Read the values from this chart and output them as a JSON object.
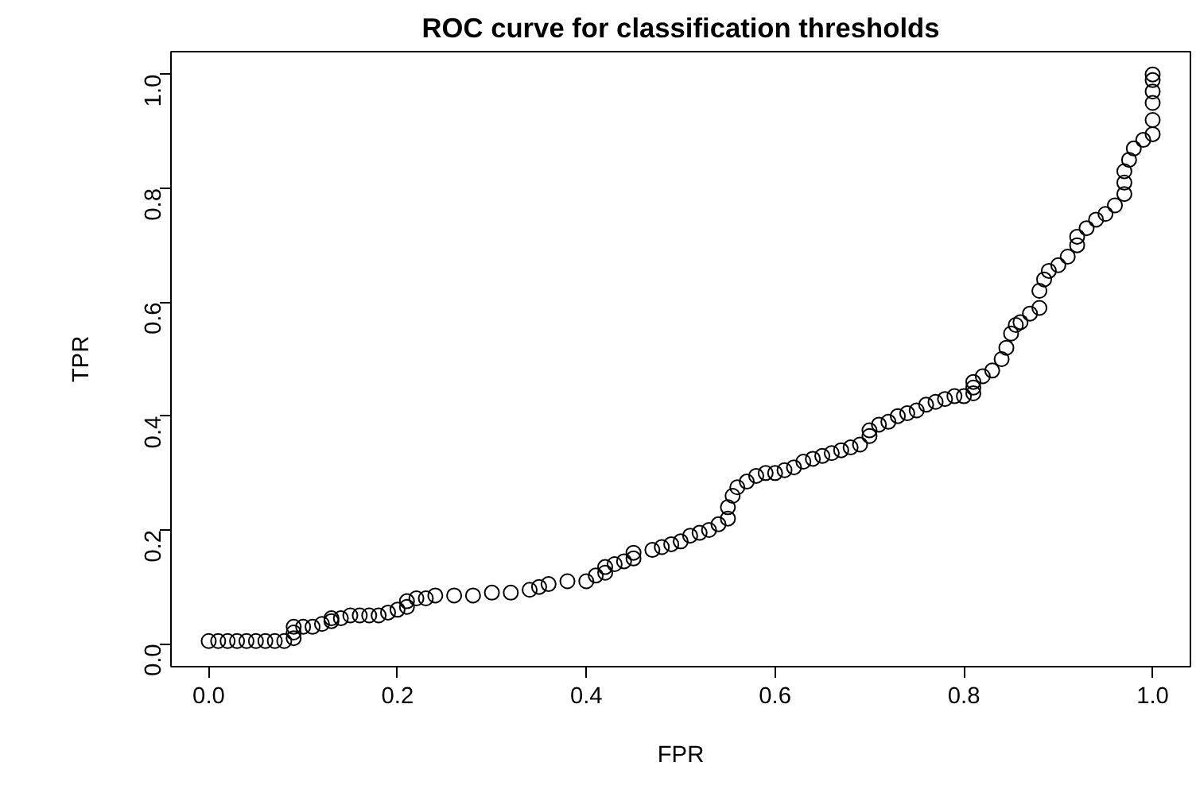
{
  "chart_data": {
    "type": "scatter",
    "title": "ROC curve for classification thresholds",
    "xlabel": "FPR",
    "ylabel": "TPR",
    "xlim": [
      -0.04,
      1.04
    ],
    "ylim": [
      -0.04,
      1.04
    ],
    "xticks": [
      {
        "value": 0,
        "label": "0.0"
      },
      0.2,
      0.4,
      0.6,
      0.8,
      {
        "value": 1,
        "label": "1.0"
      }
    ],
    "yticks": [
      {
        "value": 0,
        "label": "0.0"
      },
      0.2,
      0.4,
      0.6,
      0.8,
      {
        "value": 1,
        "label": "1.0"
      }
    ],
    "grid": false,
    "marker": "circle",
    "series": [
      {
        "color": "#000000",
        "x": [
          0.0,
          0.01,
          0.02,
          0.03,
          0.04,
          0.05,
          0.06,
          0.07,
          0.08,
          0.09,
          0.09,
          0.09,
          0.1,
          0.11,
          0.12,
          0.13,
          0.13,
          0.14,
          0.15,
          0.16,
          0.17,
          0.18,
          0.19,
          0.2,
          0.21,
          0.21,
          0.22,
          0.23,
          0.24,
          0.26,
          0.28,
          0.3,
          0.32,
          0.34,
          0.35,
          0.36,
          0.38,
          0.4,
          0.41,
          0.42,
          0.42,
          0.43,
          0.44,
          0.45,
          0.45,
          0.47,
          0.48,
          0.49,
          0.5,
          0.51,
          0.52,
          0.53,
          0.54,
          0.55,
          0.55,
          0.555,
          0.56,
          0.57,
          0.58,
          0.59,
          0.6,
          0.61,
          0.62,
          0.63,
          0.64,
          0.65,
          0.66,
          0.67,
          0.68,
          0.69,
          0.7,
          0.7,
          0.71,
          0.72,
          0.73,
          0.74,
          0.75,
          0.76,
          0.77,
          0.78,
          0.79,
          0.8,
          0.81,
          0.81,
          0.81,
          0.82,
          0.83,
          0.84,
          0.845,
          0.85,
          0.855,
          0.86,
          0.87,
          0.88,
          0.88,
          0.885,
          0.89,
          0.9,
          0.91,
          0.92,
          0.92,
          0.93,
          0.94,
          0.95,
          0.96,
          0.97,
          0.97,
          0.97,
          0.975,
          0.98,
          0.99,
          1.0,
          1.0,
          1.0,
          1.0,
          1.0,
          1.0
        ],
        "values": [
          0.005,
          0.005,
          0.005,
          0.005,
          0.005,
          0.005,
          0.005,
          0.005,
          0.005,
          0.01,
          0.02,
          0.03,
          0.03,
          0.03,
          0.035,
          0.04,
          0.045,
          0.045,
          0.05,
          0.05,
          0.05,
          0.05,
          0.055,
          0.06,
          0.065,
          0.075,
          0.08,
          0.08,
          0.085,
          0.085,
          0.085,
          0.09,
          0.09,
          0.095,
          0.1,
          0.105,
          0.11,
          0.11,
          0.12,
          0.125,
          0.135,
          0.14,
          0.145,
          0.15,
          0.16,
          0.165,
          0.17,
          0.175,
          0.18,
          0.19,
          0.195,
          0.2,
          0.21,
          0.22,
          0.24,
          0.26,
          0.275,
          0.285,
          0.295,
          0.3,
          0.3,
          0.305,
          0.31,
          0.32,
          0.325,
          0.33,
          0.335,
          0.34,
          0.345,
          0.35,
          0.365,
          0.375,
          0.385,
          0.39,
          0.4,
          0.405,
          0.41,
          0.42,
          0.425,
          0.43,
          0.435,
          0.435,
          0.44,
          0.45,
          0.46,
          0.47,
          0.48,
          0.5,
          0.52,
          0.545,
          0.56,
          0.565,
          0.58,
          0.59,
          0.62,
          0.64,
          0.655,
          0.665,
          0.68,
          0.7,
          0.715,
          0.73,
          0.745,
          0.755,
          0.77,
          0.79,
          0.81,
          0.83,
          0.85,
          0.87,
          0.885,
          0.895,
          0.92,
          0.95,
          0.97,
          0.99,
          1.0
        ]
      }
    ]
  }
}
